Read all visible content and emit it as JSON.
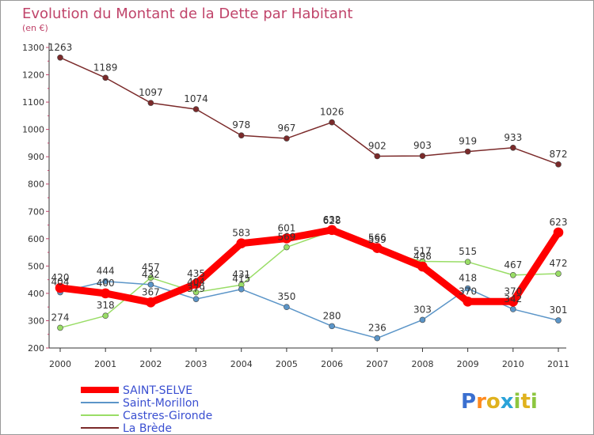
{
  "chart_data": {
    "type": "line",
    "title": "Evolution du Montant de la Dette par Habitant",
    "subtitle": "(en €)",
    "x": [
      "2000",
      "2001",
      "2002",
      "2003",
      "2004",
      "2005",
      "2006",
      "2007",
      "2008",
      "2009",
      "2010",
      "2011"
    ],
    "ylim": [
      200,
      1300
    ],
    "yticks": [
      200,
      300,
      400,
      500,
      600,
      700,
      800,
      900,
      1000,
      1100,
      1200,
      1300
    ],
    "grid": false,
    "legend_position": "bottom-left",
    "series": [
      {
        "name": "SAINT-SELVE",
        "color": "#ff0000",
        "values": [
          420,
          400,
          367,
          435,
          583,
          601,
          632,
          566,
          498,
          370,
          370,
          623
        ]
      },
      {
        "name": "Saint-Morillon",
        "color": "#5b95c8",
        "values": [
          404,
          444,
          432,
          379,
          415,
          350,
          280,
          236,
          303,
          418,
          342,
          301
        ]
      },
      {
        "name": "Castres-Gironde",
        "color": "#99dd66",
        "values": [
          274,
          318,
          457,
          404,
          431,
          569,
          628,
          559,
          517,
          515,
          467,
          472
        ]
      },
      {
        "name": "La Brède",
        "color": "#7b2a2a",
        "values": [
          1263,
          1189,
          1097,
          1074,
          978,
          967,
          1026,
          902,
          903,
          919,
          933,
          872
        ]
      }
    ]
  },
  "logo": {
    "text": "Proxiti"
  }
}
